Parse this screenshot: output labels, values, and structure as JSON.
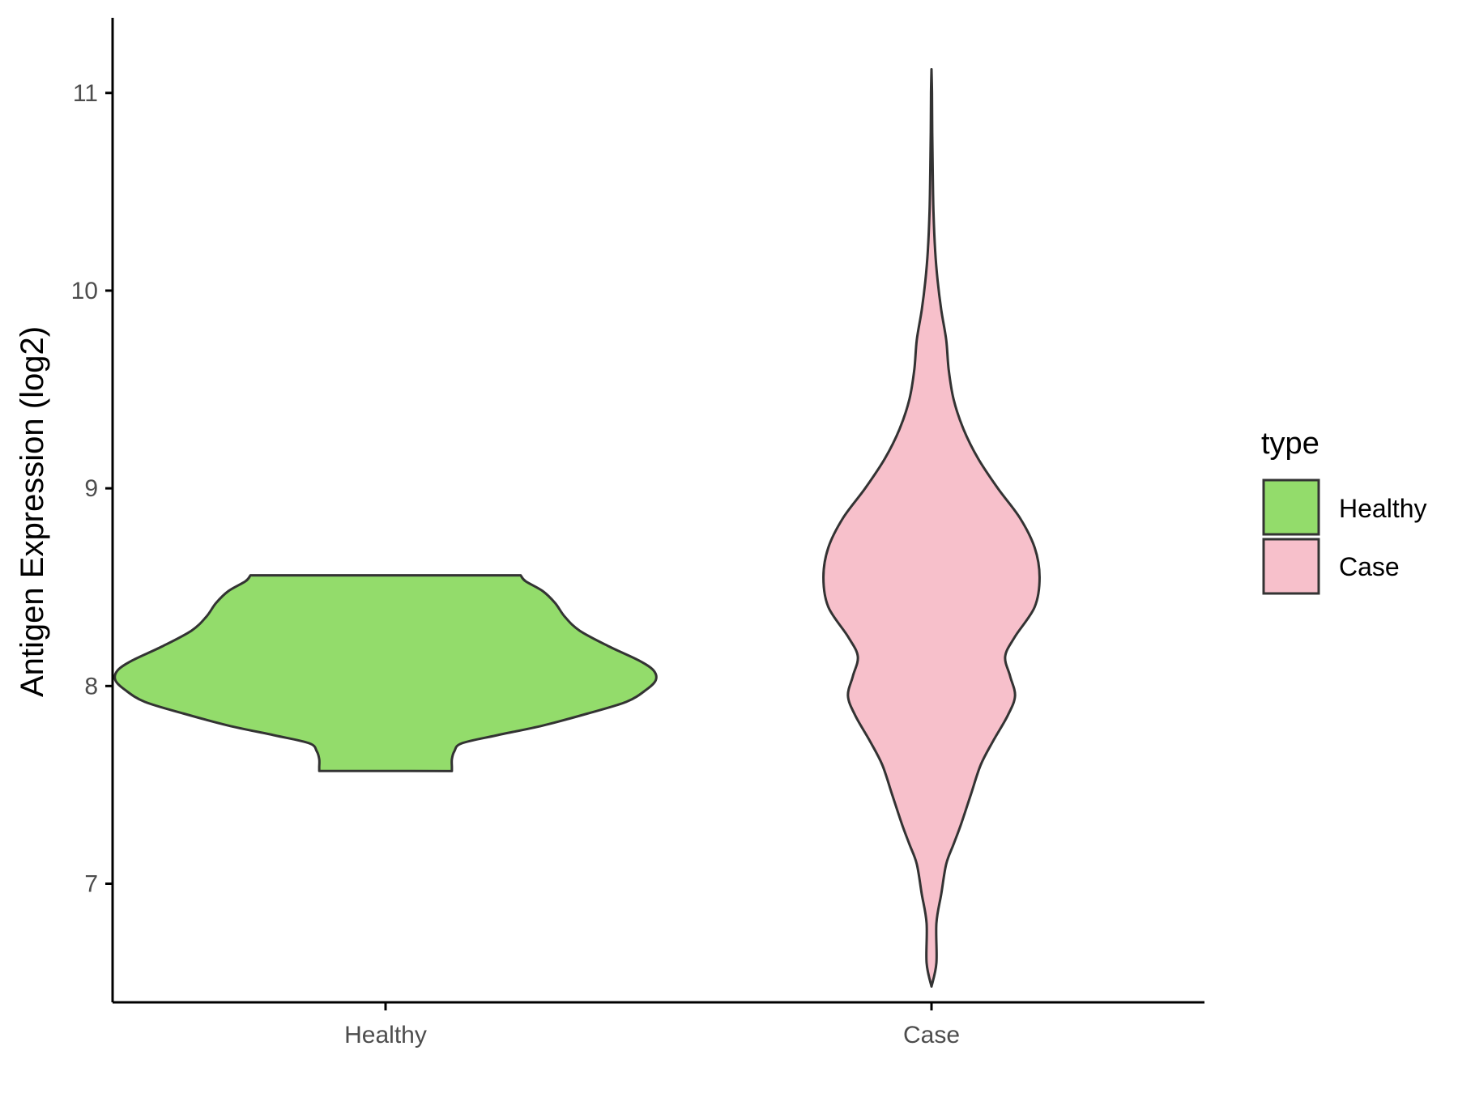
{
  "chart_data": {
    "type": "violin",
    "ylabel": "Antigen Expression (log2)",
    "xlabel": "",
    "categories": [
      "Healthy",
      "Case"
    ],
    "y_ticks": [
      "7",
      "8",
      "9",
      "10",
      "11"
    ],
    "ylim": [
      6.4,
      11.38
    ],
    "grid": false,
    "legend": {
      "title": "type",
      "position": "right",
      "entries": [
        "Healthy",
        "Case"
      ]
    },
    "colors": {
      "Healthy": "#93dc6b",
      "Case": "#f7c0cb",
      "outline": "#333333",
      "axis": "#000000"
    },
    "series": [
      {
        "name": "Healthy",
        "profile": [
          [
            7.57,
            0.27
          ],
          [
            7.59,
            0.27
          ],
          [
            7.63,
            0.27
          ],
          [
            7.67,
            0.28
          ],
          [
            7.71,
            0.31
          ],
          [
            7.75,
            0.45
          ],
          [
            7.8,
            0.64
          ],
          [
            7.86,
            0.82
          ],
          [
            7.92,
            0.98
          ],
          [
            7.98,
            1.06
          ],
          [
            8.03,
            1.1
          ],
          [
            8.08,
            1.09
          ],
          [
            8.13,
            1.03
          ],
          [
            8.2,
            0.91
          ],
          [
            8.28,
            0.79
          ],
          [
            8.35,
            0.73
          ],
          [
            8.42,
            0.69
          ],
          [
            8.48,
            0.64
          ],
          [
            8.53,
            0.57
          ],
          [
            8.56,
            0.55
          ]
        ]
      },
      {
        "name": "Case",
        "profile": [
          [
            6.48,
            0.0
          ],
          [
            6.6,
            0.02
          ],
          [
            6.8,
            0.02
          ],
          [
            6.95,
            0.04
          ],
          [
            7.1,
            0.06
          ],
          [
            7.2,
            0.09
          ],
          [
            7.3,
            0.12
          ],
          [
            7.45,
            0.16
          ],
          [
            7.6,
            0.2
          ],
          [
            7.72,
            0.25
          ],
          [
            7.85,
            0.31
          ],
          [
            7.95,
            0.34
          ],
          [
            8.05,
            0.32
          ],
          [
            8.15,
            0.3
          ],
          [
            8.25,
            0.34
          ],
          [
            8.4,
            0.42
          ],
          [
            8.55,
            0.44
          ],
          [
            8.7,
            0.42
          ],
          [
            8.85,
            0.36
          ],
          [
            9.0,
            0.27
          ],
          [
            9.15,
            0.19
          ],
          [
            9.3,
            0.13
          ],
          [
            9.45,
            0.09
          ],
          [
            9.6,
            0.07
          ],
          [
            9.75,
            0.06
          ],
          [
            9.9,
            0.04
          ],
          [
            10.05,
            0.025
          ],
          [
            10.2,
            0.015
          ],
          [
            10.4,
            0.008
          ],
          [
            10.6,
            0.005
          ],
          [
            10.8,
            0.003
          ],
          [
            11.0,
            0.002
          ],
          [
            11.12,
            0.0
          ]
        ]
      }
    ]
  }
}
